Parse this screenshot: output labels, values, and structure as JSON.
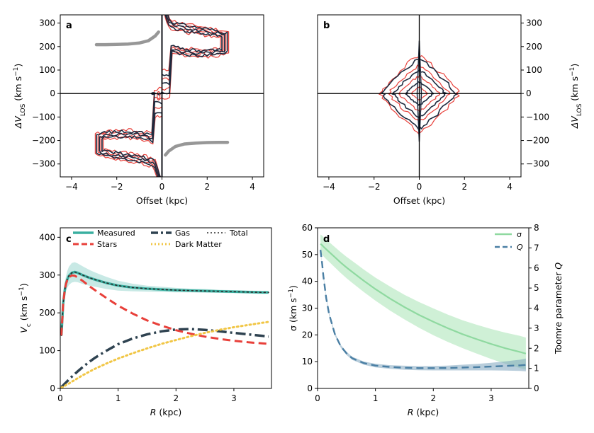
{
  "chart_data": [
    {
      "panel": "a",
      "type": "contour",
      "xlabel": "Offset (kpc)",
      "ylabel_parts": [
        "ΔV",
        "LOS",
        " (km s",
        "−1",
        ")"
      ],
      "xlim": [
        -4.5,
        4.5
      ],
      "ylim": [
        -355,
        335
      ],
      "xticks": [
        -4,
        -2,
        0,
        2,
        4
      ],
      "yticks": [
        -300,
        -200,
        -100,
        0,
        100,
        200,
        300
      ],
      "ytick_side": "left",
      "colors": {
        "model": "#e8403a",
        "data": "#1e2a3e",
        "curve": "#8c8c8c"
      },
      "rotation_curve": {
        "x": [
          -2.9,
          -2.5,
          -2.0,
          -1.5,
          -1.0,
          -0.6,
          -0.3,
          -0.15,
          0.0,
          0.15,
          0.3,
          0.6,
          1.0,
          1.5,
          2.0,
          2.5,
          2.9
        ],
        "y": [
          208,
          208,
          209,
          211,
          215,
          225,
          245,
          262,
          0,
          -262,
          -245,
          -225,
          -215,
          -211,
          -209,
          -208,
          -208
        ]
      }
    },
    {
      "panel": "b",
      "type": "contour",
      "xlabel": "Offset (kpc)",
      "ylabel_parts": [
        "ΔV",
        "LOS",
        " (km s",
        "−1",
        ")"
      ],
      "xlim": [
        -4.5,
        4.5
      ],
      "ylim": [
        -355,
        335
      ],
      "xticks": [
        -4,
        -2,
        0,
        2,
        4
      ],
      "yticks": [
        -300,
        -200,
        -100,
        0,
        100,
        200,
        300
      ],
      "ytick_side": "right",
      "colors": {
        "model": "#e8403a",
        "data": "#1e2a3e"
      }
    },
    {
      "panel": "c",
      "type": "line",
      "xlabel_parts": [
        "R",
        " (kpc)"
      ],
      "ylabel_parts": [
        "V",
        "c",
        " (km s",
        "−1",
        ")"
      ],
      "xlim": [
        0,
        3.65
      ],
      "ylim": [
        0,
        425
      ],
      "xticks": [
        0,
        1,
        2,
        3
      ],
      "yticks": [
        0,
        100,
        200,
        300,
        400
      ],
      "x": [
        0.02,
        0.05,
        0.08,
        0.1,
        0.12,
        0.15,
        0.2,
        0.25,
        0.3,
        0.4,
        0.5,
        0.6,
        0.8,
        1.0,
        1.25,
        1.5,
        1.75,
        2.0,
        2.25,
        2.5,
        2.75,
        3.0,
        3.25,
        3.5,
        3.6
      ],
      "series": [
        {
          "name": "Measured",
          "style": "solid",
          "width": 3.5,
          "color": "#3aafa0",
          "values": [
            140,
            225,
            262,
            278,
            288,
            298,
            306,
            308,
            306,
            299,
            293,
            288,
            279,
            272,
            267,
            264,
            262,
            260,
            259,
            258,
            257,
            256,
            255,
            254,
            254
          ],
          "band": [
            8,
            14,
            18,
            20,
            22,
            24,
            26,
            26,
            25,
            23,
            21,
            19,
            16,
            13,
            10,
            8,
            7,
            6,
            5,
            5,
            4,
            4,
            4,
            4,
            4
          ]
        },
        {
          "name": "Gas",
          "style": "dashdot",
          "width": 3.5,
          "color": "#2e4250",
          "values": [
            4,
            8,
            13,
            16,
            19,
            24,
            31,
            38,
            45,
            58,
            70,
            81,
            100,
            117,
            132,
            143,
            151,
            156,
            157,
            155,
            151,
            147,
            143,
            139,
            137
          ]
        },
        {
          "name": "Total",
          "style": "dotted",
          "width": 1.6,
          "color": "#2b2b2b",
          "values": [
            140,
            225,
            262,
            278,
            288,
            298,
            306,
            308,
            306,
            299,
            293,
            288,
            279,
            272,
            267,
            264,
            262,
            260,
            259,
            258,
            257,
            256,
            255,
            254,
            254
          ]
        },
        {
          "name": "Stars",
          "style": "dashed",
          "width": 3,
          "color": "#e8403a",
          "values": [
            140,
            225,
            262,
            277,
            286,
            294,
            299,
            298,
            294,
            283,
            271,
            260,
            239,
            219,
            198,
            180,
            166,
            154,
            145,
            137,
            131,
            126,
            122,
            119,
            118
          ]
        },
        {
          "name": "Dark Matter",
          "style": "dotted",
          "width": 3,
          "color": "#f1c645",
          "values": [
            2,
            4,
            7,
            9,
            11,
            13,
            18,
            22,
            27,
            36,
            44,
            52,
            66,
            79,
            93,
            106,
            118,
            128,
            138,
            147,
            155,
            162,
            168,
            174,
            176
          ]
        }
      ],
      "legend": [
        "Measured",
        "Gas",
        "Total",
        "Stars",
        "Dark Matter"
      ]
    },
    {
      "panel": "d",
      "type": "line",
      "xlabel_parts": [
        "R",
        " (kpc)"
      ],
      "ylabel": "σ (km s",
      "ylabel_sup": "−1",
      "ylabel_end": ")",
      "y2label_parts": [
        "Toomre parameter ",
        "Q"
      ],
      "xlim": [
        0,
        3.65
      ],
      "ylim": [
        0,
        60
      ],
      "y2lim": [
        0,
        8
      ],
      "xticks": [
        0,
        1,
        2,
        3
      ],
      "yticks": [
        0,
        10,
        20,
        30,
        40,
        50,
        60
      ],
      "y2ticks": [
        0,
        1,
        2,
        3,
        4,
        5,
        6,
        7,
        8
      ],
      "x": [
        0.05,
        0.08,
        0.1,
        0.15,
        0.2,
        0.3,
        0.4,
        0.5,
        0.6,
        0.8,
        1.0,
        1.25,
        1.5,
        1.75,
        2.0,
        2.25,
        2.5,
        2.75,
        3.0,
        3.25,
        3.5,
        3.6
      ],
      "series": [
        {
          "name": "σ",
          "axis": "left",
          "style": "solid",
          "width": 2.2,
          "color": "#8fd9a0",
          "bandcolor": "#a8e3b4",
          "values": [
            54,
            53.5,
            53,
            52,
            51,
            49,
            47,
            45.2,
            43.5,
            40.2,
            37.1,
            33.6,
            30.4,
            27.5,
            24.9,
            22.5,
            20.3,
            18.4,
            16.6,
            15,
            13.6,
            13
          ],
          "band": [
            3.5,
            3.6,
            3.6,
            3.7,
            3.7,
            3.8,
            3.9,
            4,
            4.1,
            4.2,
            4.3,
            4.5,
            4.6,
            4.8,
            5,
            5.1,
            5.2,
            5.4,
            5.6,
            5.8,
            6,
            6
          ]
        },
        {
          "name": "Q",
          "axis": "right",
          "style": "dashed",
          "width": 2.4,
          "color": "#4a7fa4",
          "bandcolor": "#7da4bd",
          "values": [
            6.9,
            6.2,
            5.6,
            4.5,
            3.7,
            2.7,
            2.1,
            1.75,
            1.5,
            1.26,
            1.14,
            1.07,
            1.03,
            1.01,
            1.01,
            1.02,
            1.04,
            1.06,
            1.09,
            1.12,
            1.15,
            1.17
          ],
          "band": [
            0.05,
            0.06,
            0.07,
            0.07,
            0.07,
            0.07,
            0.07,
            0.08,
            0.08,
            0.08,
            0.09,
            0.09,
            0.1,
            0.1,
            0.11,
            0.12,
            0.14,
            0.16,
            0.19,
            0.23,
            0.28,
            0.32
          ]
        }
      ],
      "legend": [
        "σ",
        "Q"
      ]
    }
  ]
}
